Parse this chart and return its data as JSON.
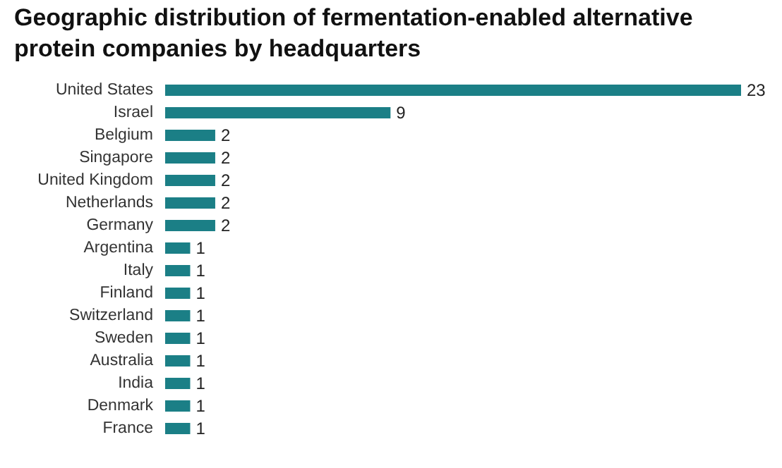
{
  "chart_data": {
    "type": "bar",
    "orientation": "horizontal",
    "title": "Geographic distribution of fermentation-enabled alternative protein companies by headquarters",
    "categories": [
      "United States",
      "Israel",
      "Belgium",
      "Singapore",
      "United Kingdom",
      "Netherlands",
      "Germany",
      "Argentina",
      "Italy",
      "Finland",
      "Switzerland",
      "Sweden",
      "Australia",
      "India",
      "Denmark",
      "France"
    ],
    "values": [
      23,
      9,
      2,
      2,
      2,
      2,
      2,
      1,
      1,
      1,
      1,
      1,
      1,
      1,
      1,
      1
    ],
    "color": "#1b7f86",
    "data_labels": true
  }
}
